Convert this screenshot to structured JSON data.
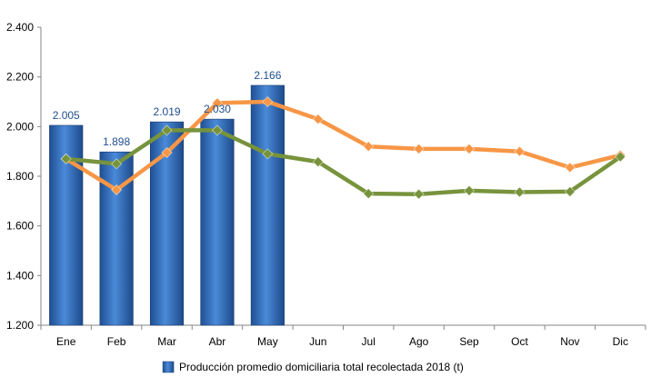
{
  "chart_data": {
    "type": "bar",
    "categories": [
      "Ene",
      "Feb",
      "Mar",
      "Abr",
      "May",
      "Jun",
      "Jul",
      "Ago",
      "Sep",
      "Oct",
      "Nov",
      "Dic"
    ],
    "ylim": [
      1200,
      2400
    ],
    "yticks": [
      1200,
      1400,
      1600,
      1800,
      2000,
      2200,
      2400
    ],
    "ytick_labels": [
      "1.200",
      "1.400",
      "1.600",
      "1.800",
      "2.000",
      "2.200",
      "2.400"
    ],
    "grid": false,
    "legend_position": "bottom",
    "series": [
      {
        "name": "Producción promedio domiciliaria total recolectada 2018 (t)",
        "kind": "bar",
        "color": "#2e6bb8",
        "values": [
          2005,
          1898,
          2019,
          2030,
          2166,
          null,
          null,
          null,
          null,
          null,
          null,
          null
        ],
        "data_labels": [
          "2.005",
          "1.898",
          "2.019",
          "2.030",
          "2.166"
        ]
      },
      {
        "kind": "line",
        "color": "#f79646",
        "values": [
          1870,
          1745,
          1895,
          2095,
          2100,
          2030,
          1920,
          1910,
          1910,
          1900,
          1835,
          1885
        ]
      },
      {
        "kind": "line",
        "color": "#77933c",
        "values": [
          1870,
          1850,
          1985,
          1985,
          1890,
          1858,
          1730,
          1728,
          1742,
          1736,
          1738,
          1878
        ]
      }
    ]
  }
}
